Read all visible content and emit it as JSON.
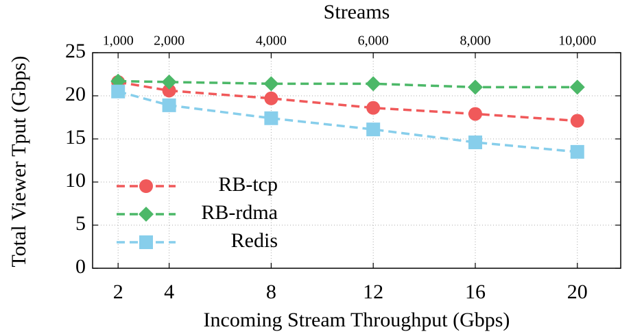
{
  "chart_data": {
    "type": "line",
    "xlabel": "Incoming Stream Throughput (Gbps)",
    "ylabel": "Total Viewer Tput (Gbps)",
    "x2label": "Streams",
    "x": [
      2,
      4,
      8,
      12,
      16,
      20
    ],
    "series": [
      {
        "name": "RB-tcp",
        "color": "#f0595a",
        "marker": "circle",
        "values": [
          21.6,
          20.6,
          19.7,
          18.6,
          17.9,
          17.1
        ]
      },
      {
        "name": "RB-rdma",
        "color": "#4cb868",
        "marker": "diamond",
        "values": [
          21.7,
          21.6,
          21.4,
          21.4,
          21.0,
          21.0
        ]
      },
      {
        "name": "Redis",
        "color": "#87ceeb",
        "marker": "square",
        "values": [
          20.5,
          18.9,
          17.4,
          16.1,
          14.6,
          13.5
        ]
      }
    ],
    "xlim": [
      1,
      21.7
    ],
    "xticks": [
      2,
      4,
      8,
      12,
      16,
      20
    ],
    "x2lim": [
      500,
      10850
    ],
    "x2ticks": [
      {
        "value": 1000,
        "label": "1,000"
      },
      {
        "value": 2000,
        "label": "2,000"
      },
      {
        "value": 4000,
        "label": "4,000"
      },
      {
        "value": 6000,
        "label": "6,000"
      },
      {
        "value": 8000,
        "label": "8,000"
      },
      {
        "value": 10000,
        "label": "10,000"
      }
    ],
    "ylim": [
      0,
      25
    ],
    "yticks": [
      0,
      5,
      10,
      15,
      20,
      25
    ],
    "grid": true,
    "legend": "left"
  }
}
